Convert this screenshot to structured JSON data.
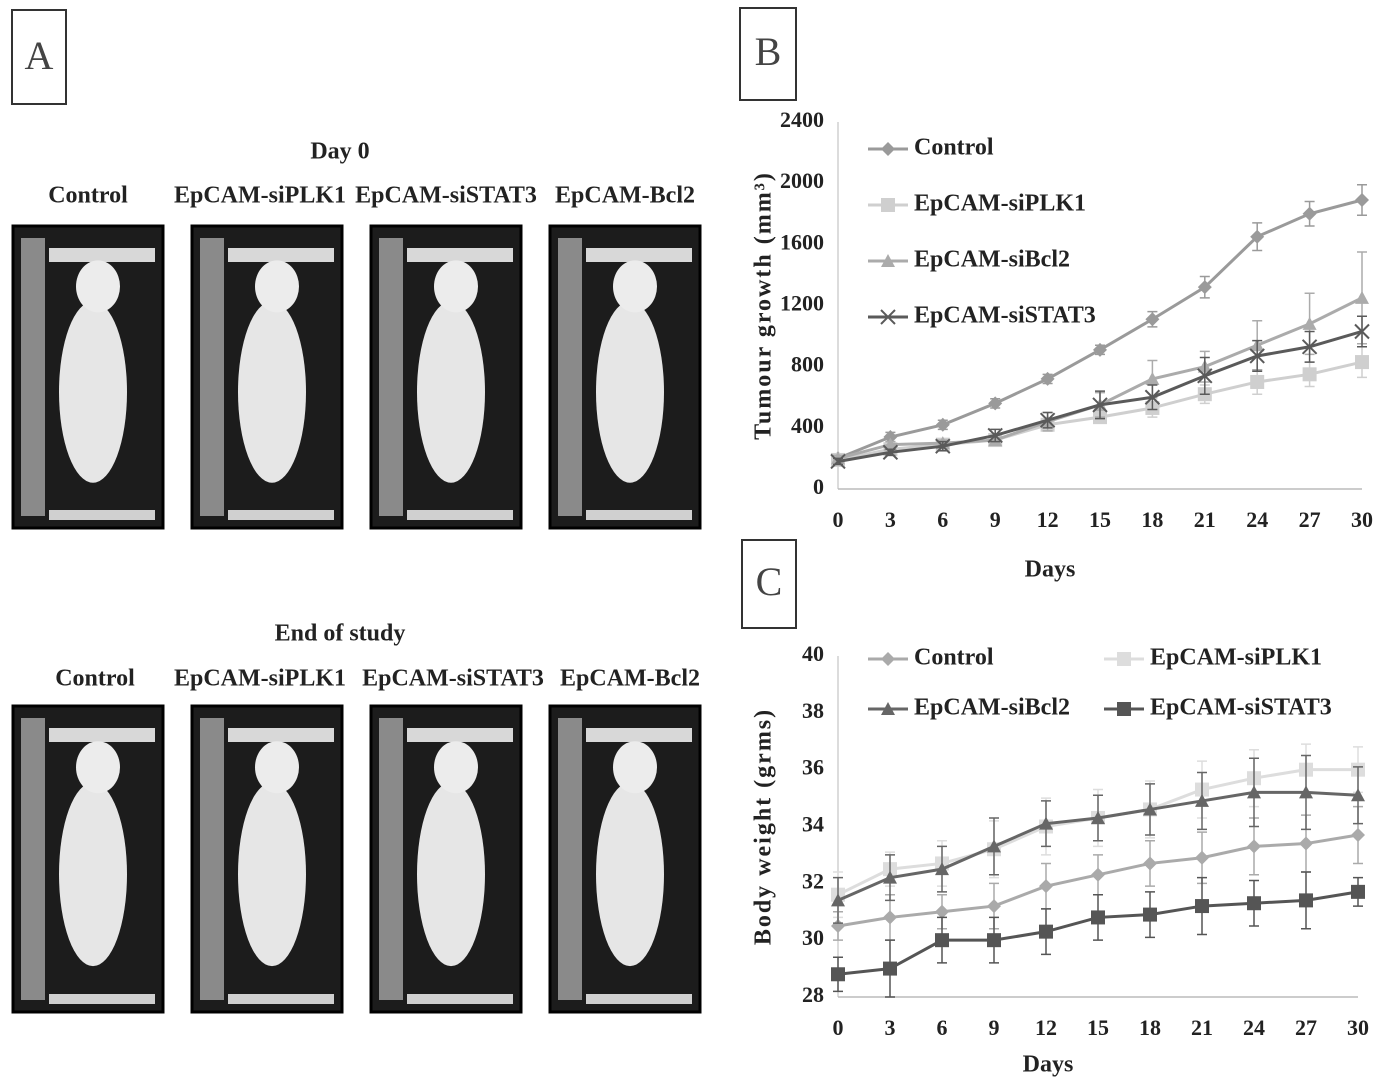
{
  "panel_labels": [
    "A",
    "B",
    "C"
  ],
  "panel_a": {
    "rows": [
      {
        "title": "Day 0",
        "labels": [
          "Control",
          "EpCAM-siPLK1",
          "EpCAM-siSTAT3",
          "EpCAM-Bcl2"
        ]
      },
      {
        "title": "End of study",
        "labels": [
          "Control",
          "EpCAM-siPLK1",
          "EpCAM-siSTAT3",
          "EpCAM-Bcl2"
        ]
      }
    ]
  },
  "chart_data": [
    {
      "type": "line",
      "x_label": "Days",
      "y_label": "Tumour growth (mm³)",
      "x": [
        0,
        3,
        6,
        9,
        12,
        15,
        18,
        21,
        24,
        27,
        30
      ],
      "xlim": [
        0,
        30
      ],
      "xticks": [
        0,
        3,
        6,
        9,
        12,
        15,
        18,
        21,
        24,
        27,
        30
      ],
      "ylim": [
        0,
        2400
      ],
      "yticks": [
        0,
        400,
        800,
        1200,
        1600,
        2000,
        2400
      ],
      "grid": false,
      "legend": "top-left",
      "legend_columns": 1,
      "series": [
        {
          "name": "Control",
          "color": "#9a9a9a",
          "marker": "diamond",
          "values": [
            200,
            340,
            420,
            560,
            720,
            910,
            1110,
            1320,
            1650,
            1800,
            1890
          ],
          "errors": [
            20,
            30,
            30,
            30,
            30,
            30,
            50,
            70,
            90,
            80,
            100
          ]
        },
        {
          "name": "EpCAM-siPLK1",
          "color": "#cfcfcf",
          "marker": "square",
          "values": [
            190,
            260,
            290,
            320,
            420,
            470,
            530,
            620,
            700,
            750,
            830
          ],
          "errors": [
            20,
            20,
            20,
            30,
            40,
            40,
            60,
            60,
            80,
            80,
            100
          ]
        },
        {
          "name": "EpCAM-siBcl2",
          "color": "#ababab",
          "marker": "triangle",
          "values": [
            200,
            290,
            300,
            320,
            440,
            550,
            720,
            800,
            940,
            1080,
            1250
          ],
          "errors": [
            20,
            20,
            20,
            30,
            60,
            80,
            120,
            100,
            160,
            200,
            300
          ]
        },
        {
          "name": "EpCAM-siSTAT3",
          "color": "#5a5a5a",
          "marker": "x",
          "values": [
            180,
            240,
            280,
            350,
            450,
            550,
            600,
            740,
            870,
            930,
            1030
          ],
          "errors": [
            20,
            20,
            30,
            40,
            50,
            90,
            80,
            120,
            100,
            100,
            100
          ]
        }
      ]
    },
    {
      "type": "line",
      "x_label": "Days",
      "y_label": "Body weight (grms)",
      "x": [
        0,
        3,
        6,
        9,
        12,
        15,
        18,
        21,
        24,
        27,
        30
      ],
      "xlim": [
        0,
        30
      ],
      "xticks": [
        0,
        3,
        6,
        9,
        12,
        15,
        18,
        21,
        24,
        27,
        30
      ],
      "ylim": [
        28,
        40
      ],
      "yticks": [
        28,
        30,
        32,
        34,
        36,
        38,
        40
      ],
      "grid": false,
      "legend": "top-left",
      "legend_columns": 2,
      "series": [
        {
          "name": "Control",
          "color": "#aaaaaa",
          "marker": "diamond",
          "values": [
            30.5,
            30.8,
            31.0,
            31.2,
            31.9,
            32.3,
            32.7,
            32.9,
            33.3,
            33.4,
            33.7
          ],
          "errors": [
            0.5,
            0.8,
            0.6,
            0.8,
            0.8,
            0.7,
            0.8,
            0.9,
            1.0,
            1.0,
            1.0
          ]
        },
        {
          "name": "EpCAM-siPLK1",
          "color": "#dddddd",
          "marker": "square",
          "values": [
            31.6,
            32.5,
            32.7,
            33.2,
            34.0,
            34.3,
            34.6,
            35.3,
            35.7,
            36.0,
            36.0
          ],
          "errors": [
            0.8,
            0.6,
            0.8,
            1.0,
            1.0,
            1.0,
            1.0,
            1.0,
            1.0,
            0.9,
            0.8
          ]
        },
        {
          "name": "EpCAM-siBcl2",
          "color": "#666666",
          "marker": "triangle",
          "values": [
            31.4,
            32.2,
            32.5,
            33.3,
            34.1,
            34.3,
            34.6,
            34.9,
            35.2,
            35.2,
            35.1
          ],
          "errors": [
            0.8,
            0.8,
            0.8,
            1.0,
            0.8,
            0.8,
            0.9,
            1.0,
            1.2,
            1.3,
            1.0
          ]
        },
        {
          "name": "EpCAM-siSTAT3",
          "color": "#555555",
          "marker": "square",
          "values": [
            28.8,
            29.0,
            30.0,
            30.0,
            30.3,
            30.8,
            30.9,
            31.2,
            31.3,
            31.4,
            31.7
          ],
          "errors": [
            0.6,
            1.0,
            0.8,
            0.8,
            0.8,
            0.8,
            0.8,
            1.0,
            0.8,
            1.0,
            0.5
          ]
        }
      ]
    }
  ]
}
